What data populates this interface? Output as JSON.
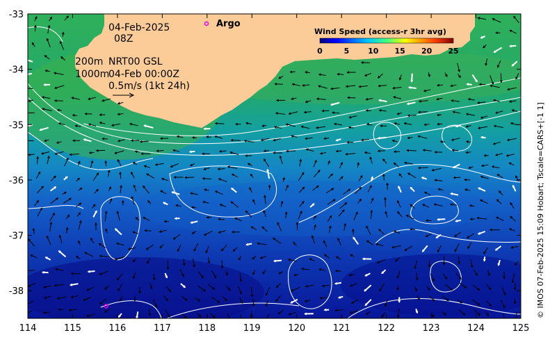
{
  "map": {
    "date": "04-Feb-2025",
    "time": "08Z",
    "depth_shallow": "200m",
    "depth_deep": "1000m",
    "product": "NRT00 GSL",
    "analysis_time": "04-Feb 00:00Z",
    "velocity_scale": "0.5m/s (1kt 24h)",
    "argo_label": "Argo",
    "credit": "© IMOS 07-Feb-2025 15:09 Hobart; Tscale=CARS+[-1 1]",
    "x_ticks": [
      "114",
      "115",
      "116",
      "117",
      "118",
      "119",
      "120",
      "121",
      "122",
      "123",
      "124",
      "125"
    ],
    "y_ticks": [
      "-33",
      "-34",
      "-35",
      "-36",
      "-37",
      "-38"
    ],
    "lon_range": [
      114,
      125
    ],
    "lat_range": [
      -38.5,
      -33
    ],
    "argo_floats": [
      {
        "lon": 115.75,
        "lat": -38.28
      }
    ],
    "colorbar": {
      "title": "Wind Speed (access-r 3hr avg)",
      "ticks": [
        "0",
        "5",
        "10",
        "15",
        "20",
        "25"
      ],
      "range": [
        0,
        25
      ]
    },
    "colors": {
      "land": "#fccc98",
      "contour": "#ffffff",
      "argo": "#e600e6",
      "warm": "#3cb048",
      "cool": "#0a1c9c"
    }
  }
}
